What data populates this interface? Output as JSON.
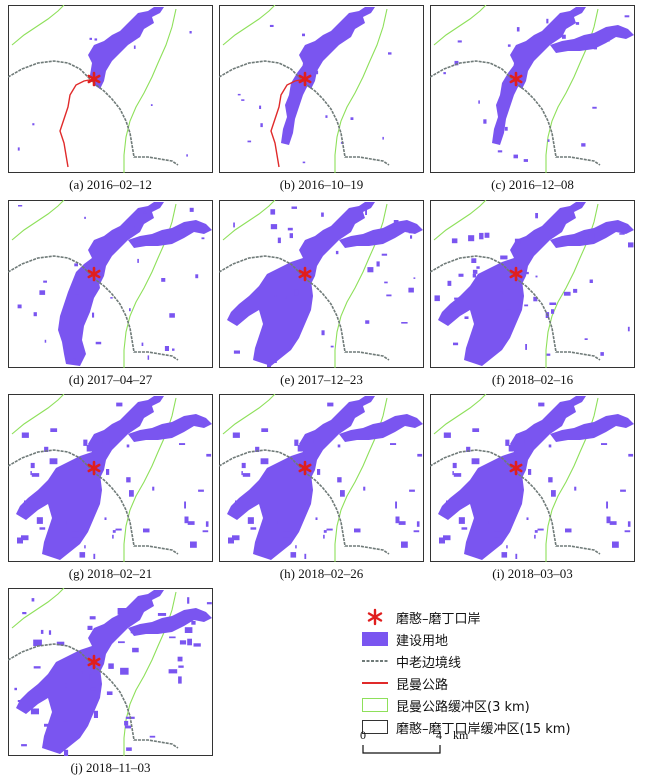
{
  "panels": [
    {
      "caption": "(a) 2016–02–12",
      "stage": 0,
      "road": true
    },
    {
      "caption": "(b) 2016–10–19",
      "stage": 1,
      "road": true
    },
    {
      "caption": "(c) 2016–12–08",
      "stage": 2,
      "road": false
    },
    {
      "caption": "(d) 2017–04–27",
      "stage": 3,
      "road": false
    },
    {
      "caption": "(e) 2017–12–23",
      "stage": 4,
      "road": false
    },
    {
      "caption": "(f) 2018–02–16",
      "stage": 5,
      "road": false
    },
    {
      "caption": "(g) 2018–02–21",
      "stage": 6,
      "road": false
    },
    {
      "caption": "(h) 2018–02–26",
      "stage": 6,
      "road": false
    },
    {
      "caption": "(i) 2018–03–03",
      "stage": 6,
      "road": false
    },
    {
      "caption": "(j) 2018–11–03",
      "stage": 7,
      "road": false
    }
  ],
  "legend": {
    "port": "磨憨–磨丁口岸",
    "built_up": "建设用地",
    "border": "中老边境线",
    "highway": "昆曼公路",
    "highway_buffer": "昆曼公路缓冲区(3 km)",
    "port_buffer": "磨憨–磨丁口岸缓冲区(15 km)"
  },
  "scale": {
    "zero": "0",
    "max": "4",
    "unit": "km"
  },
  "colors": {
    "built_up": "#7a55f0",
    "port": "#e01e1e",
    "border": "#6f7a78",
    "highway": "#e02a2a",
    "highway_buffer": "#8ee05a",
    "frame": "#333333"
  }
}
